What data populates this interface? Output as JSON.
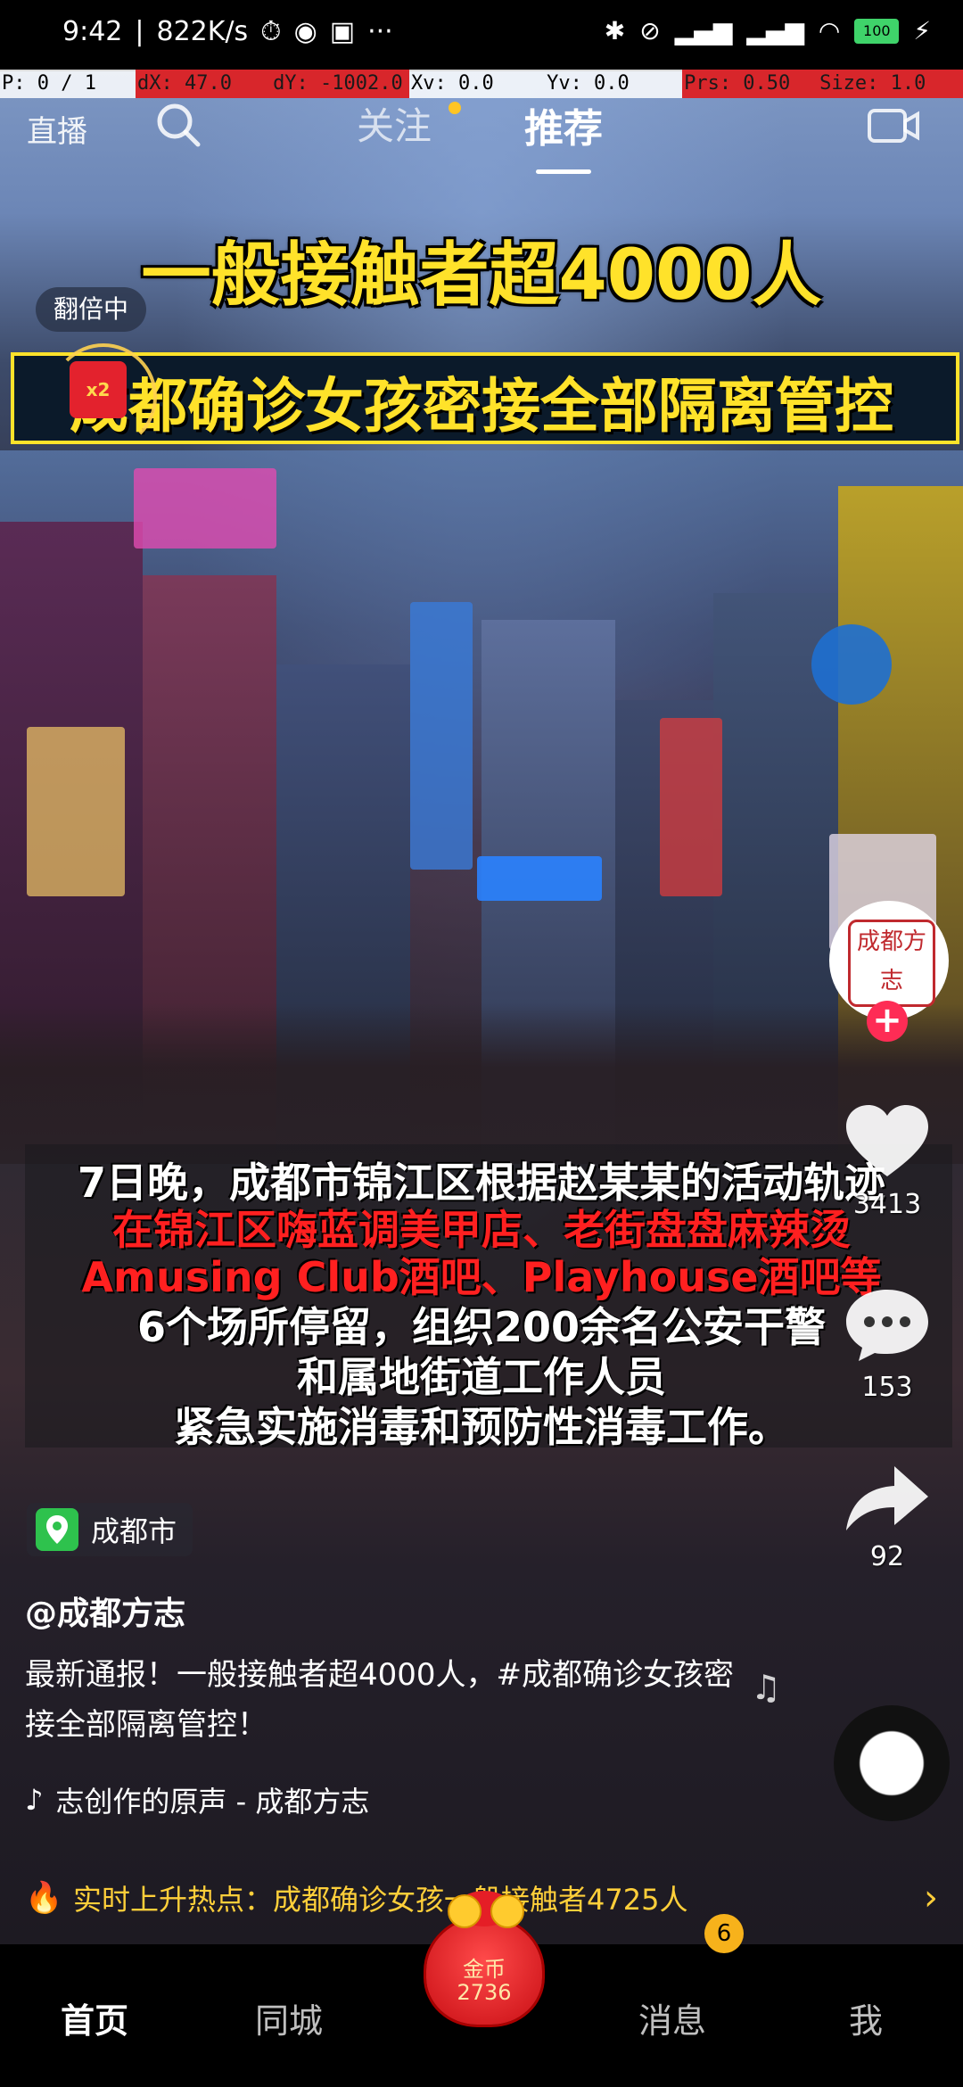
{
  "status_bar": {
    "time": "9:42",
    "speed": "822K/s",
    "battery": "100"
  },
  "debug": {
    "p": "P: 0 / 1",
    "dx": "dX: 47.0",
    "dy": "dY: -1002.0",
    "xv": "Xv: 0.0",
    "yv": "Yv: 0.0",
    "prs": "Prs: 0.50",
    "size": "Size: 1.0"
  },
  "topnav": {
    "live": "直播",
    "follow": "关注",
    "recommend": "推荐"
  },
  "video": {
    "headline1": "一般接触者超4000人",
    "headline2": "成都确诊女孩密接全部隔离管控",
    "double_pill": "翻倍中",
    "redpack_label": "x2",
    "subtitles": [
      "7日晚，成都市锦江区根据赵某某的活动轨迹",
      "在锦江区嗨蓝调美甲店、老街盘盘麻辣烫",
      "Amusing Club酒吧、Playhouse酒吧等",
      "6个场所停留，组织200余名公安干警",
      "和属地街道工作人员",
      "紧急实施消毒和预防性消毒工作。"
    ]
  },
  "actions": {
    "likes": "3413",
    "comments": "153",
    "shares": "92",
    "avatar_text": "成都方志"
  },
  "post": {
    "location": "成都市",
    "author": "@成都方志",
    "caption": "最新通报！一般接触者超4000人，#成都确诊女孩密接全部隔离管控！",
    "music": "志创作的原声 - 成都方志"
  },
  "hot": {
    "text": "实时上升热点：成都确诊女孩一般接触者4725人"
  },
  "bottomnav": {
    "home": "首页",
    "city": "同城",
    "coin_label": "金币",
    "coin_count": "2736",
    "messages": "消息",
    "messages_badge": "6",
    "me": "我"
  }
}
